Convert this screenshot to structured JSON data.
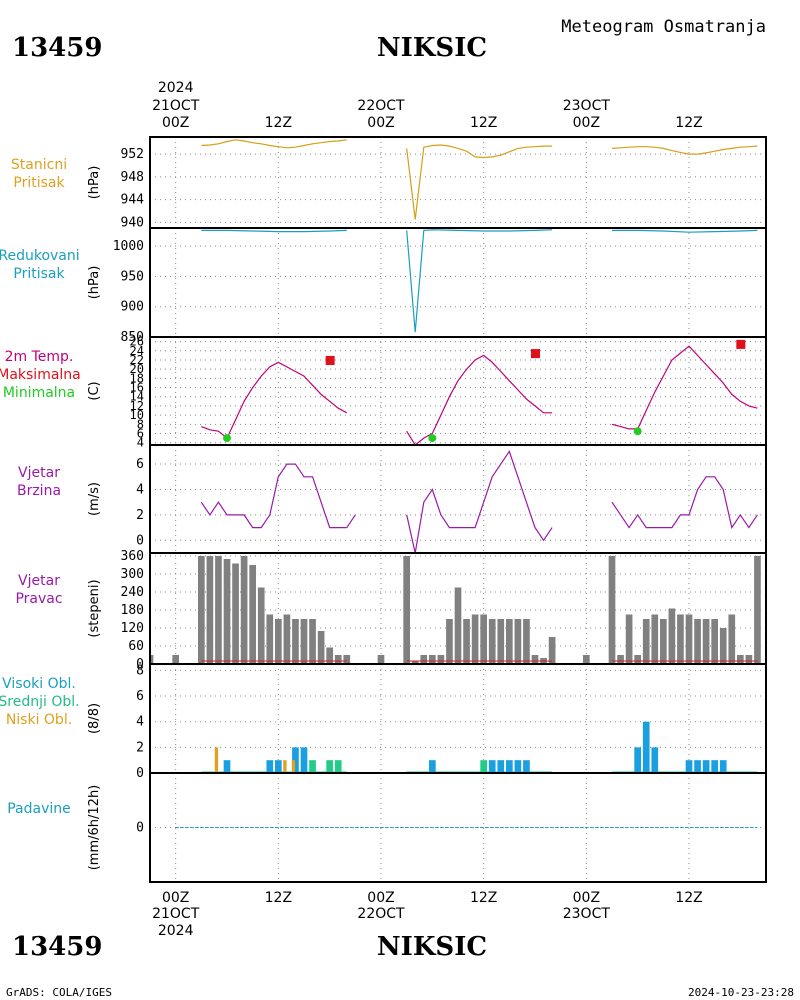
{
  "header": {
    "station_id": "13459",
    "station_name": "NIKSIC",
    "chart_title": "Meteogram Osmatranja",
    "year_label": "2024"
  },
  "footer": {
    "credit": "GrADS: COLA/IGES",
    "timestamp": "2024-10-23-23:28"
  },
  "time_axis": {
    "top_labels": [
      {
        "day": "21OCT",
        "hour": "00Z",
        "year": "2024"
      },
      {
        "day": "",
        "hour": "12Z"
      },
      {
        "day": "22OCT",
        "hour": "00Z"
      },
      {
        "day": "",
        "hour": "12Z"
      },
      {
        "day": "23OCT",
        "hour": "00Z"
      },
      {
        "day": "",
        "hour": "12Z"
      }
    ],
    "bottom_labels": [
      {
        "day": "21OCT",
        "hour": "00Z",
        "year": "2024"
      },
      {
        "day": "",
        "hour": "12Z"
      },
      {
        "day": "22OCT",
        "hour": "00Z"
      },
      {
        "day": "",
        "hour": "12Z"
      },
      {
        "day": "23OCT",
        "hour": "00Z"
      },
      {
        "day": "",
        "hour": "12Z"
      }
    ]
  },
  "colors": {
    "station_pressure": "#d4a017",
    "reduced_pressure": "#1a9fc0",
    "temperature": "#c0007a",
    "tmax": "#e0101a",
    "tmin": "#22cc22",
    "wind_speed": "#9a1aa8",
    "wind_dir": "#808080",
    "high_cloud": "#1a9fe0",
    "mid_cloud": "#22cc88",
    "low_cloud": "#e0a020",
    "precip": "#1a9fc0",
    "grid": "#888888"
  },
  "panels": [
    {
      "key": "station_pressure",
      "labels": [
        "Stanicni",
        "Pritisak"
      ],
      "label_color": "#e0a020",
      "unit": "(hPa)",
      "ticks": [
        "952",
        "948",
        "944",
        "940"
      ]
    },
    {
      "key": "reduced_pressure",
      "labels": [
        "Redukovani",
        "Pritisak"
      ],
      "label_color": "#1a9fc0",
      "unit": "(hPa)",
      "ticks": [
        "1000",
        "950",
        "900",
        "850"
      ]
    },
    {
      "key": "temperature",
      "labels": [
        "2m Temp.",
        "Maksimalna",
        "Minimalna"
      ],
      "label_colors": [
        "#c0007a",
        "#e0101a",
        "#22cc22"
      ],
      "unit": "(C)",
      "ticks": [
        "26",
        "24",
        "22",
        "20",
        "18",
        "16",
        "14",
        "12",
        "10",
        "8",
        "6",
        "4"
      ]
    },
    {
      "key": "wind_speed",
      "labels": [
        "Vjetar",
        "Brzina"
      ],
      "label_color": "#9a1aa8",
      "unit": "(m/s)",
      "ticks": [
        "6",
        "4",
        "2",
        "0"
      ]
    },
    {
      "key": "wind_dir",
      "labels": [
        "Vjetar",
        "Pravac"
      ],
      "label_color": "#9a1aa8",
      "unit": "(stepeni)",
      "ticks": [
        "360",
        "300",
        "240",
        "180",
        "120",
        "60",
        "0"
      ]
    },
    {
      "key": "clouds",
      "labels": [
        "Visoki Obl.",
        "Srednji Obl.",
        "Niski Obl."
      ],
      "label_colors": [
        "#1a9fc0",
        "#22bb88",
        "#e0a020"
      ],
      "unit": "(8/8)",
      "ticks": [
        "8",
        "6",
        "4",
        "2",
        "0"
      ]
    },
    {
      "key": "precip",
      "labels": [
        "Padavine"
      ],
      "label_color": "#1a9fc0",
      "unit": "(mm/6h/12h)",
      "ticks": [
        "0"
      ]
    }
  ],
  "chart_data": {
    "type": "line",
    "x_unit": "hours since 21OCT 00Z",
    "xlim": [
      -3,
      69
    ],
    "station_pressure": {
      "ylim": [
        939,
        955
      ],
      "segments": [
        {
          "x": [
            3,
            4,
            5,
            6,
            7,
            8,
            9,
            10,
            11,
            12,
            13,
            14,
            15,
            16,
            17,
            18,
            19,
            20
          ],
          "y": [
            953.5,
            953.6,
            953.8,
            954.2,
            954.5,
            954.3,
            954,
            953.8,
            953.5,
            953.3,
            953.1,
            953.2,
            953.5,
            953.8,
            954,
            954.2,
            954.3,
            954.5
          ]
        },
        {
          "x": [
            27,
            28,
            29,
            30,
            31,
            32,
            33,
            34,
            35,
            36,
            37,
            38,
            39,
            40,
            41,
            42,
            43,
            44
          ],
          "y": [
            953,
            940.5,
            953.2,
            953.5,
            953.6,
            953.4,
            953,
            952.5,
            951.5,
            951.4,
            951.5,
            951.8,
            952.4,
            953,
            953.2,
            953.3,
            953.4,
            953.4
          ]
        },
        {
          "x": [
            51,
            52,
            53,
            54,
            55,
            56,
            57,
            58,
            59,
            60,
            61,
            62,
            63,
            64,
            65,
            66,
            67,
            68
          ],
          "y": [
            953,
            953.1,
            953.2,
            953.3,
            953.3,
            953.2,
            953,
            952.6,
            952.3,
            952,
            952,
            952.2,
            952.5,
            952.8,
            953,
            953.2,
            953.3,
            953.4
          ]
        }
      ]
    },
    "reduced_pressure": {
      "ylim": [
        850,
        1030
      ],
      "segments": [
        {
          "x": [
            3,
            6,
            9,
            12,
            15,
            18,
            20
          ],
          "y": [
            1026,
            1026,
            1025,
            1024,
            1024,
            1025,
            1026
          ]
        },
        {
          "x": [
            27,
            28,
            29,
            30,
            33,
            36,
            39,
            42,
            44
          ],
          "y": [
            1026,
            858,
            1026,
            1027,
            1026,
            1025,
            1025,
            1026,
            1027
          ]
        },
        {
          "x": [
            51,
            54,
            57,
            60,
            63,
            66,
            68
          ],
          "y": [
            1026,
            1026,
            1025,
            1023,
            1024,
            1025,
            1026
          ]
        }
      ]
    },
    "temperature": {
      "ylim": [
        3.5,
        27
      ],
      "segments": [
        {
          "x": [
            3,
            4,
            5,
            6,
            7,
            8,
            9,
            10,
            11,
            12,
            13,
            14,
            15,
            16,
            17,
            18,
            19,
            20
          ],
          "y": [
            7.5,
            6.8,
            6.5,
            5,
            9,
            13,
            16,
            18.5,
            20.5,
            21.5,
            20.5,
            19.5,
            18.5,
            16.5,
            14.5,
            13,
            11.5,
            10.5
          ]
        },
        {
          "x": [
            27,
            28,
            29,
            30,
            31,
            32,
            33,
            34,
            35,
            36,
            37,
            38,
            39,
            40,
            41,
            42,
            43,
            44
          ],
          "y": [
            6.5,
            3.5,
            5,
            6,
            10,
            14,
            17.5,
            20,
            22,
            23,
            21.5,
            19.5,
            17.5,
            15.5,
            13.5,
            12,
            10.5,
            10.5
          ]
        },
        {
          "x": [
            51,
            52,
            53,
            54,
            55,
            56,
            57,
            58,
            59,
            60,
            61,
            62,
            63,
            64,
            65,
            66,
            67,
            68
          ],
          "y": [
            8,
            7.5,
            7,
            7,
            11,
            15,
            18.5,
            22,
            23.5,
            25,
            23,
            21,
            19,
            17,
            14.5,
            13,
            12,
            11.5
          ]
        }
      ],
      "tmax": [
        {
          "x": 18,
          "y": 22
        },
        {
          "x": 42,
          "y": 23.5
        },
        {
          "x": 66,
          "y": 25.5
        }
      ],
      "tmin": [
        {
          "x": 6,
          "y": 5
        },
        {
          "x": 30,
          "y": 5
        },
        {
          "x": 54,
          "y": 6.5
        }
      ]
    },
    "wind_speed": {
      "ylim": [
        -1,
        7.5
      ],
      "segments": [
        {
          "x": [
            3,
            4,
            5,
            6,
            7,
            8,
            9,
            10,
            11,
            12,
            13,
            14,
            15,
            16,
            17,
            18,
            19,
            20
          ],
          "y": [
            3,
            2,
            3,
            2,
            2,
            2,
            1,
            1,
            2,
            5,
            6,
            6,
            5,
            5,
            3,
            1,
            1,
            1
          ]
        },
        {
          "x": [
            20,
            21
          ],
          "y": [
            1,
            2
          ]
        },
        {
          "x": [
            27,
            28,
            29,
            30,
            31,
            32,
            33,
            34,
            35,
            36,
            37,
            38,
            39,
            40,
            41,
            42,
            43,
            44
          ],
          "y": [
            2,
            -1,
            3,
            4,
            2,
            1,
            1,
            1,
            1,
            3,
            5,
            6,
            7,
            5,
            3,
            1,
            0,
            1
          ]
        },
        {
          "x": [
            51,
            52,
            53,
            54,
            55,
            56,
            57,
            58,
            59,
            60,
            61,
            62,
            63,
            64,
            65,
            66,
            67,
            68
          ],
          "y": [
            3,
            2,
            1,
            2,
            1,
            1,
            1,
            1,
            2,
            2,
            4,
            5,
            5,
            4,
            1,
            2,
            1,
            2
          ]
        }
      ]
    },
    "wind_dir": {
      "ylim": [
        0,
        370
      ],
      "x": [
        -3,
        0,
        3,
        4,
        5,
        6,
        7,
        8,
        9,
        10,
        11,
        12,
        13,
        14,
        15,
        16,
        17,
        18,
        19,
        20,
        24,
        27,
        28,
        29,
        30,
        31,
        32,
        33,
        34,
        35,
        36,
        37,
        38,
        39,
        40,
        41,
        42,
        43,
        44,
        48,
        51,
        52,
        53,
        54,
        55,
        56,
        57,
        58,
        59,
        60,
        61,
        62,
        63,
        64,
        65,
        66,
        67,
        68
      ],
      "values": [
        30,
        30,
        360,
        360,
        360,
        350,
        335,
        360,
        330,
        255,
        165,
        150,
        165,
        150,
        150,
        150,
        110,
        55,
        30,
        30,
        30,
        360,
        10,
        30,
        30,
        30,
        150,
        255,
        150,
        165,
        165,
        150,
        150,
        150,
        150,
        150,
        30,
        20,
        90,
        30,
        360,
        30,
        165,
        30,
        150,
        165,
        150,
        185,
        165,
        165,
        150,
        150,
        150,
        120,
        165,
        30,
        30,
        360
      ]
    },
    "clouds": {
      "ylim": [
        0,
        8.5
      ],
      "high": [
        {
          "x": 6,
          "v": 1
        },
        {
          "x": 11,
          "v": 1
        },
        {
          "x": 12,
          "v": 1
        },
        {
          "x": 14,
          "v": 2
        },
        {
          "x": 15,
          "v": 2
        },
        {
          "x": 30,
          "v": 1
        },
        {
          "x": 37,
          "v": 1
        },
        {
          "x": 38,
          "v": 1
        },
        {
          "x": 39,
          "v": 1
        },
        {
          "x": 40,
          "v": 1
        },
        {
          "x": 41,
          "v": 1
        },
        {
          "x": 54,
          "v": 2
        },
        {
          "x": 55,
          "v": 4
        },
        {
          "x": 56,
          "v": 2
        },
        {
          "x": 60,
          "v": 1
        },
        {
          "x": 61,
          "v": 1
        },
        {
          "x": 62,
          "v": 1
        },
        {
          "x": 63,
          "v": 1
        },
        {
          "x": 64,
          "v": 1
        }
      ],
      "mid": [
        {
          "x": 16,
          "v": 1
        },
        {
          "x": 18,
          "v": 1
        },
        {
          "x": 19,
          "v": 1
        },
        {
          "x": 36,
          "v": 1
        }
      ],
      "low": [
        {
          "x": 5,
          "v": 2
        },
        {
          "x": 13,
          "v": 1
        },
        {
          "x": 14,
          "v": 1
        }
      ]
    },
    "precip": {
      "ylim": [
        -1,
        1
      ],
      "x": [
        0,
        3,
        6,
        9,
        12,
        15,
        18,
        21,
        24,
        27,
        30,
        33,
        36,
        39,
        42,
        45,
        48,
        51,
        54,
        57,
        60,
        63,
        66,
        68
      ],
      "values": [
        0,
        0,
        0,
        0,
        0,
        0,
        0,
        0,
        0,
        0,
        0,
        0,
        0,
        0,
        0,
        0,
        0,
        0,
        0,
        0,
        0,
        0,
        0,
        0
      ]
    }
  }
}
